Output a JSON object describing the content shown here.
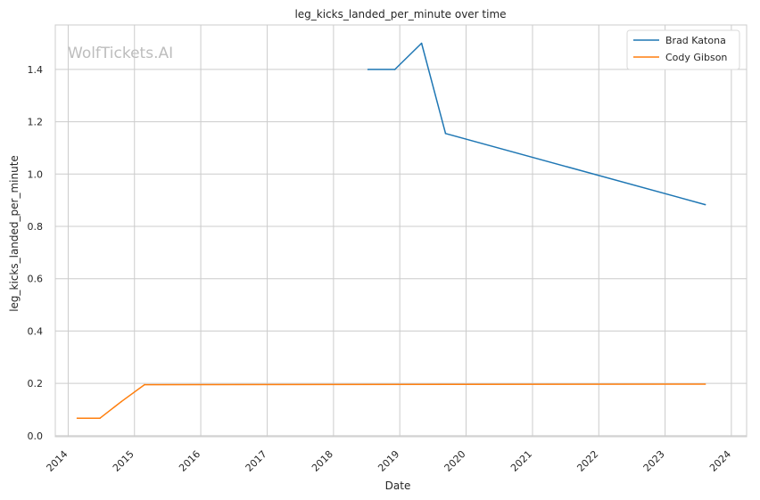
{
  "watermark": "WolfTickets.AI",
  "chart_data": {
    "type": "line",
    "title": "leg_kicks_landed_per_minute over time",
    "xlabel": "Date",
    "ylabel": "leg_kicks_landed_per_minute",
    "xlim": [
      "2013-10-22",
      "2024-03-25"
    ],
    "ylim": [
      -0.004,
      1.57
    ],
    "x_ticks": [
      "2014",
      "2015",
      "2016",
      "2017",
      "2018",
      "2019",
      "2020",
      "2021",
      "2022",
      "2023",
      "2024"
    ],
    "y_ticks": [
      "0.0",
      "0.2",
      "0.4",
      "0.6",
      "0.8",
      "1.0",
      "1.2",
      "1.4"
    ],
    "grid": true,
    "legend_position": "top-right",
    "series": [
      {
        "name": "Brad Katona",
        "color": "#1f77b4",
        "points": [
          {
            "x": "2018-07-10",
            "y": 1.4
          },
          {
            "x": "2018-12-05",
            "y": 1.4
          },
          {
            "x": "2019-05-01",
            "y": 1.5
          },
          {
            "x": "2019-09-10",
            "y": 1.155
          },
          {
            "x": "2023-08-10",
            "y": 0.883
          }
        ]
      },
      {
        "name": "Cody Gibson",
        "color": "#ff7f0e",
        "points": [
          {
            "x": "2014-02-20",
            "y": 0.067
          },
          {
            "x": "2014-06-25",
            "y": 0.067
          },
          {
            "x": "2014-10-20",
            "y": 0.13
          },
          {
            "x": "2015-02-25",
            "y": 0.195
          },
          {
            "x": "2023-08-10",
            "y": 0.197
          }
        ]
      }
    ]
  }
}
